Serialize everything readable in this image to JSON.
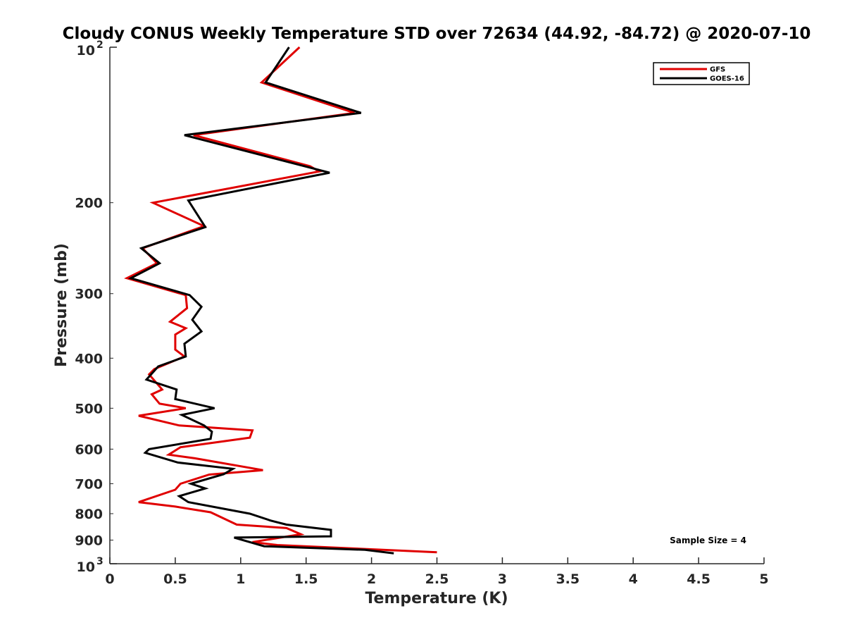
{
  "chart_data": {
    "type": "line",
    "title": "Cloudy CONUS Weekly Temperature STD over 72634 (44.92, -84.72) @ 2020-07-10",
    "xlabel": "Temperature (K)",
    "ylabel": "Pressure (mb)",
    "xlim": [
      0,
      5
    ],
    "ylim": [
      100,
      1000
    ],
    "y_scale": "log",
    "y_reversed": true,
    "x_ticks": [
      0,
      0.5,
      1,
      1.5,
      2,
      2.5,
      3,
      3.5,
      4,
      4.5,
      5
    ],
    "x_tick_labels": [
      "0",
      "0.5",
      "1",
      "1.5",
      "2",
      "2.5",
      "3",
      "3.5",
      "4",
      "4.5",
      "5"
    ],
    "y_ticks_plain": [
      {
        "value": 200,
        "label": "200"
      },
      {
        "value": 300,
        "label": "300"
      },
      {
        "value": 400,
        "label": "400"
      },
      {
        "value": 500,
        "label": "500"
      },
      {
        "value": 600,
        "label": "600"
      },
      {
        "value": 700,
        "label": "700"
      },
      {
        "value": 800,
        "label": "800"
      },
      {
        "value": 900,
        "label": "900"
      }
    ],
    "y_ticks_power": [
      {
        "value": 100,
        "base": "10",
        "exp": "2"
      },
      {
        "value": 1000,
        "base": "10",
        "exp": "3"
      }
    ],
    "grid": false,
    "legend_position": "top-right",
    "annotation": "Sample Size = 4",
    "series": [
      {
        "name": "GFS",
        "color": "#e00000",
        "points": [
          [
            1.45,
            100
          ],
          [
            1.16,
            117
          ],
          [
            1.87,
            134
          ],
          [
            0.64,
            148
          ],
          [
            1.53,
            170
          ],
          [
            1.6,
            174
          ],
          [
            0.33,
            200
          ],
          [
            0.72,
            222
          ],
          [
            0.25,
            245
          ],
          [
            0.36,
            262
          ],
          [
            0.13,
            280
          ],
          [
            0.58,
            302
          ],
          [
            0.59,
            320
          ],
          [
            0.46,
            340
          ],
          [
            0.58,
            350
          ],
          [
            0.5,
            360
          ],
          [
            0.5,
            385
          ],
          [
            0.57,
            397
          ],
          [
            0.34,
            420
          ],
          [
            0.3,
            430
          ],
          [
            0.4,
            460
          ],
          [
            0.32,
            470
          ],
          [
            0.38,
            490
          ],
          [
            0.58,
            500
          ],
          [
            0.22,
            517
          ],
          [
            0.53,
            540
          ],
          [
            1.09,
            552
          ],
          [
            1.07,
            570
          ],
          [
            0.54,
            595
          ],
          [
            0.45,
            615
          ],
          [
            0.65,
            625
          ],
          [
            1.17,
            659
          ],
          [
            0.76,
            672
          ],
          [
            0.54,
            700
          ],
          [
            0.5,
            719
          ],
          [
            0.22,
            760
          ],
          [
            0.5,
            775
          ],
          [
            0.77,
            795
          ],
          [
            0.97,
            840
          ],
          [
            1.35,
            853
          ],
          [
            1.46,
            877
          ],
          [
            1.09,
            908
          ],
          [
            1.28,
            920
          ],
          [
            2.5,
            950
          ]
        ]
      },
      {
        "name": "GOES-16",
        "color": "#000000",
        "points": [
          [
            1.37,
            100
          ],
          [
            1.19,
            117
          ],
          [
            1.92,
            134
          ],
          [
            0.57,
            148
          ],
          [
            1.68,
            175
          ],
          [
            0.6,
            198
          ],
          [
            0.73,
            223
          ],
          [
            0.24,
            245
          ],
          [
            0.38,
            262
          ],
          [
            0.16,
            280
          ],
          [
            0.61,
            302
          ],
          [
            0.7,
            318
          ],
          [
            0.63,
            337
          ],
          [
            0.7,
            355
          ],
          [
            0.57,
            375
          ],
          [
            0.58,
            397
          ],
          [
            0.37,
            415
          ],
          [
            0.28,
            440
          ],
          [
            0.51,
            460
          ],
          [
            0.5,
            480
          ],
          [
            0.8,
            500
          ],
          [
            0.55,
            515
          ],
          [
            0.72,
            540
          ],
          [
            0.78,
            555
          ],
          [
            0.77,
            573
          ],
          [
            0.3,
            600
          ],
          [
            0.27,
            610
          ],
          [
            0.52,
            637
          ],
          [
            0.94,
            655
          ],
          [
            0.87,
            671
          ],
          [
            0.62,
            700
          ],
          [
            0.73,
            715
          ],
          [
            0.53,
            740
          ],
          [
            0.6,
            760
          ],
          [
            1.07,
            800
          ],
          [
            1.23,
            825
          ],
          [
            1.35,
            840
          ],
          [
            1.69,
            860
          ],
          [
            1.69,
            885
          ],
          [
            0.95,
            890
          ],
          [
            1.18,
            925
          ],
          [
            1.95,
            940
          ],
          [
            2.17,
            955
          ]
        ]
      }
    ]
  }
}
